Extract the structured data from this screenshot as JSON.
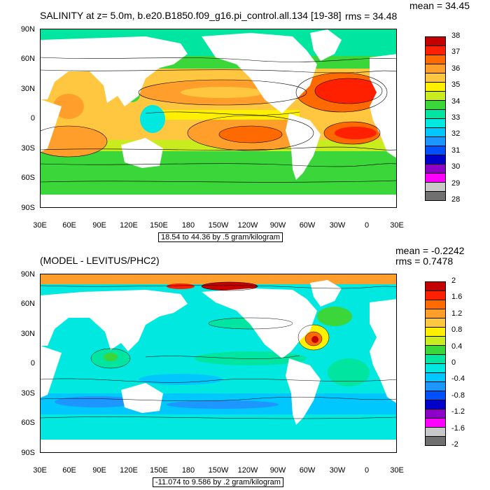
{
  "panel1": {
    "title": "SALINITY at z=   5.0m, b.e20.B1850.f09_g16.pi_control.all.134 [19-38]",
    "mean_text": "mean = 34.45",
    "rms_text": "rms = 34.48",
    "info_box": "18.54 to 44.36 by .5 gram/kilogram",
    "y_ticks": [
      "90N",
      "60N",
      "30N",
      "0",
      "30S",
      "60S",
      "90S"
    ],
    "x_ticks": [
      "30E",
      "60E",
      "90E",
      "120E",
      "150E",
      "180",
      "150W",
      "120W",
      "90W",
      "60W",
      "30W",
      "0",
      "30E"
    ],
    "colorbar_labels": [
      "38",
      "37",
      "36",
      "35",
      "34",
      "33",
      "32",
      "31",
      "30",
      "29",
      "28"
    ],
    "colorbar_colors": [
      "#c40000",
      "#ff2000",
      "#ff6a00",
      "#ff9e2a",
      "#ffc640",
      "#fff000",
      "#c8ec1e",
      "#3ad63a",
      "#00e6a0",
      "#00e8e0",
      "#00c8ff",
      "#1e96ff",
      "#0050ff",
      "#0000c8",
      "#8c00c8",
      "#ff00ff",
      "#c8c8c8",
      "#707070"
    ]
  },
  "panel2": {
    "title": "(MODEL - LEVITUS/PHC2)",
    "mean_text": "mean = -0.2242",
    "rms_text": "rms = 0.7478",
    "info_box": "-11.074 to 9.586 by .2 gram/kilogram",
    "y_ticks": [
      "90N",
      "60N",
      "30N",
      "0",
      "30S",
      "60S",
      "90S"
    ],
    "x_ticks": [
      "30E",
      "60E",
      "90E",
      "120E",
      "150E",
      "180",
      "150W",
      "120W",
      "90W",
      "60W",
      "30W",
      "0",
      "30E"
    ],
    "colorbar_labels": [
      "2",
      "1.6",
      "1.2",
      "0.8",
      "0.4",
      "0",
      "-0.4",
      "-0.8",
      "-1.2",
      "-1.6",
      "-2"
    ],
    "colorbar_colors": [
      "#c40000",
      "#ff2000",
      "#ff6a00",
      "#ff9e2a",
      "#ffc640",
      "#fff000",
      "#c8ec1e",
      "#3ad63a",
      "#00e6a0",
      "#00e8e0",
      "#00c8ff",
      "#1e96ff",
      "#0050ff",
      "#0000c8",
      "#8c00c8",
      "#ff00ff",
      "#c8c8c8",
      "#707070"
    ]
  }
}
